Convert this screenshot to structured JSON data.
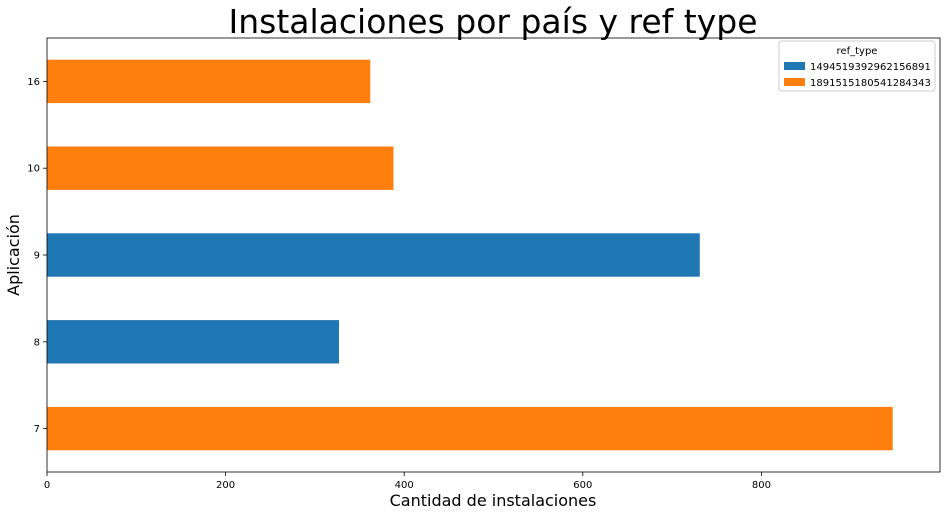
{
  "chart_data": {
    "type": "bar",
    "orientation": "horizontal",
    "title": "Instalaciones por país y ref type",
    "xlabel": "Cantidad de instalaciones",
    "ylabel": "Aplicación",
    "categories": [
      "7",
      "8",
      "9",
      "10",
      "16"
    ],
    "xlim": [
      0,
      1000
    ],
    "xticks": [
      0,
      200,
      400,
      600,
      800
    ],
    "grid": false,
    "legend": {
      "title": "ref_type",
      "placement": "top-right",
      "entries": [
        "1494519392962156891",
        "1891515180541284343"
      ]
    },
    "series": [
      {
        "name": "1494519392962156891",
        "color": "#1f77b4",
        "values": [
          null,
          327,
          731,
          null,
          null
        ]
      },
      {
        "name": "1891515180541284343",
        "color": "#ff7f0e",
        "values": [
          947,
          null,
          null,
          388,
          362
        ]
      }
    ]
  }
}
